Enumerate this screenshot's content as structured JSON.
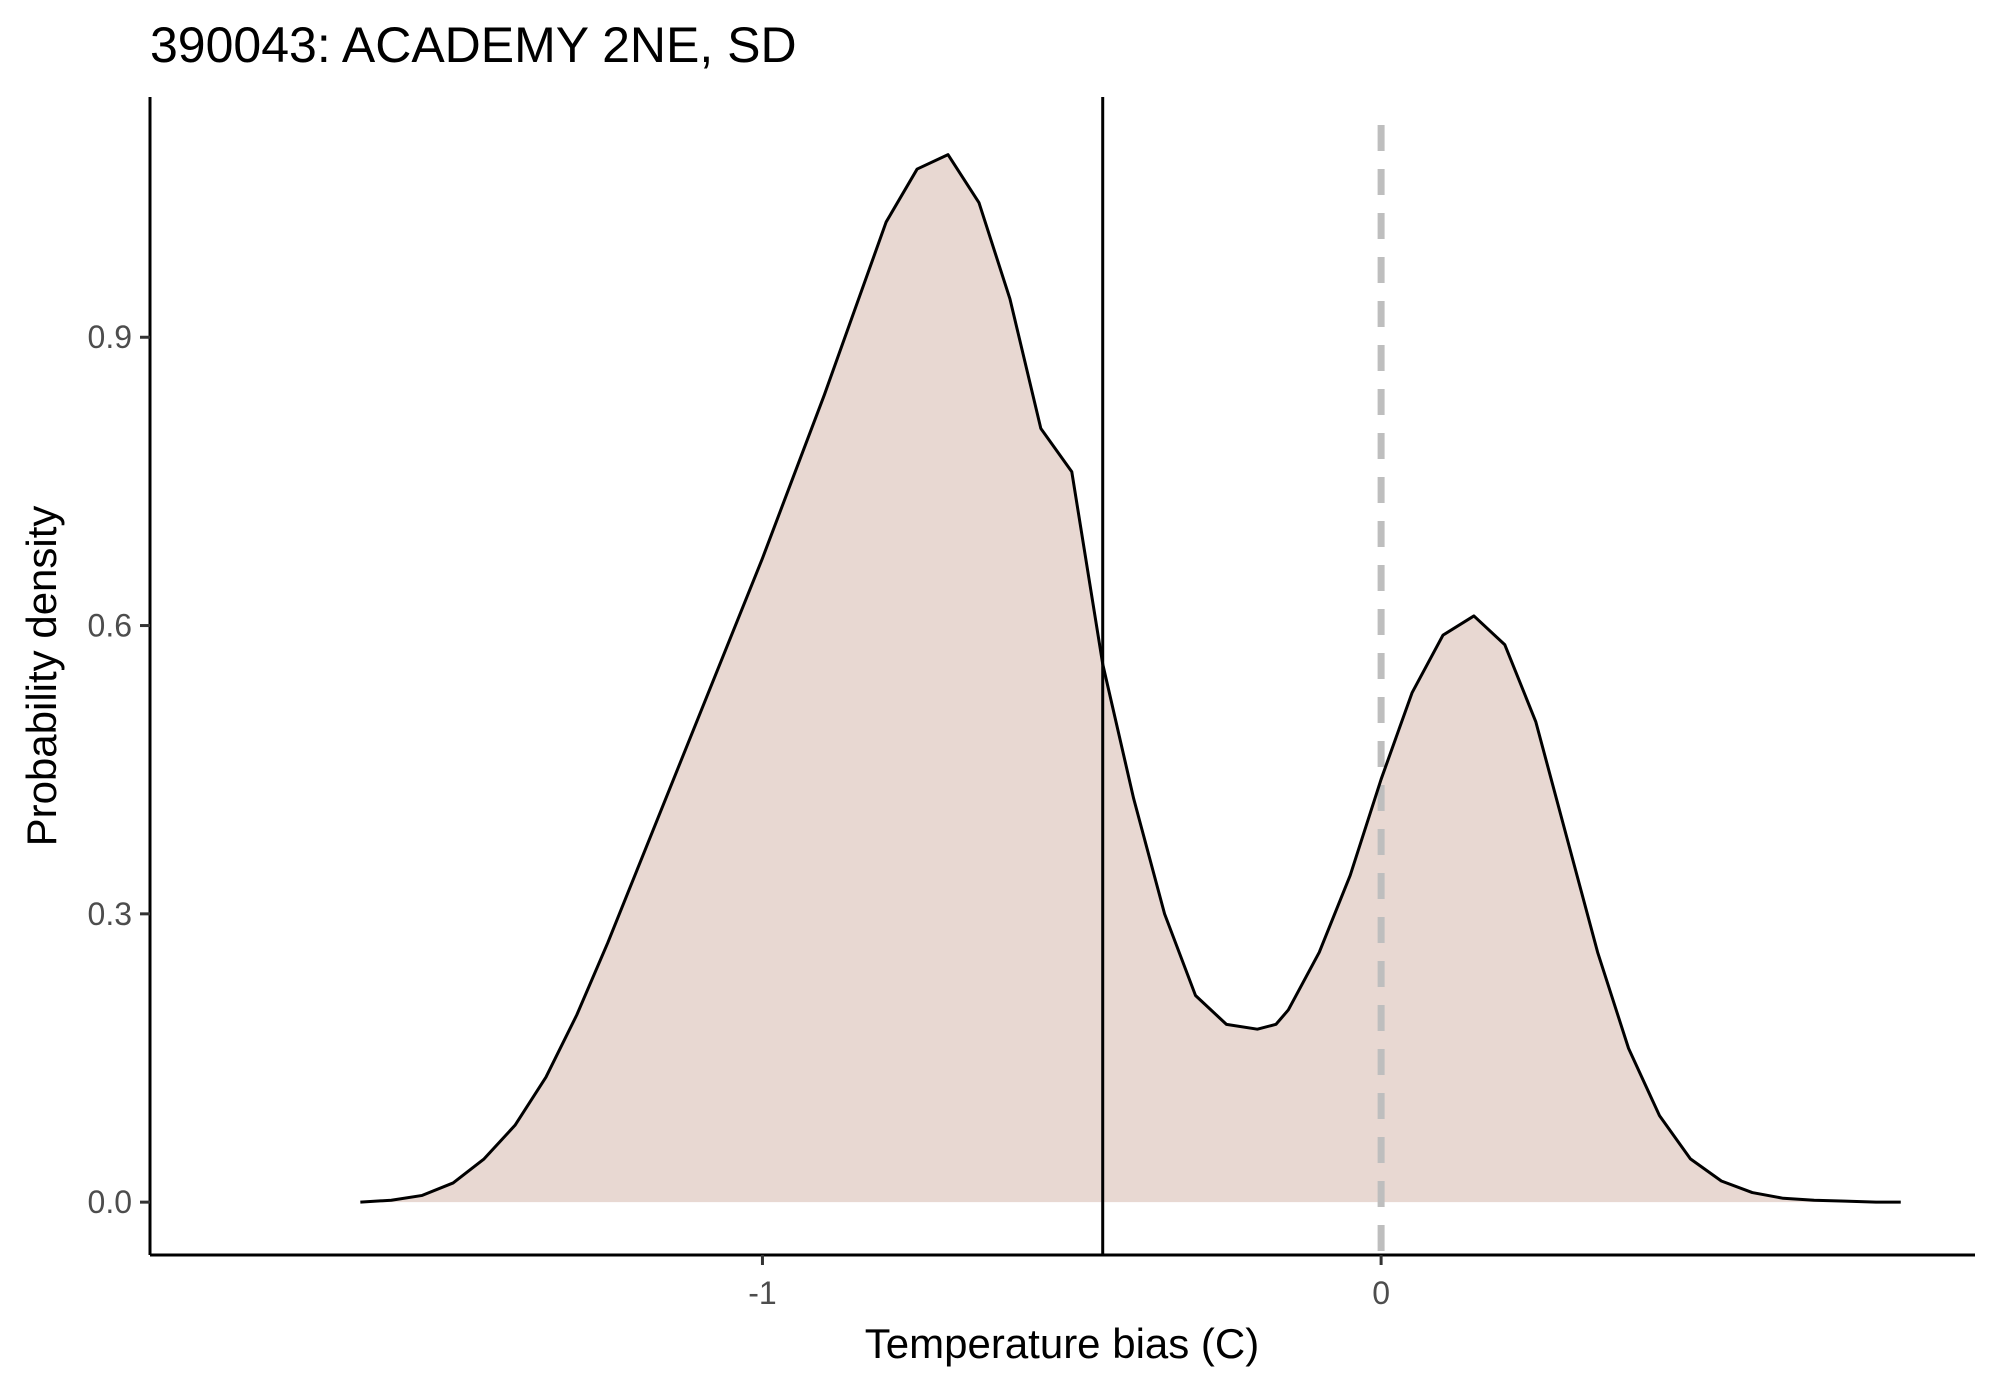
{
  "chart_data": {
    "type": "area",
    "title": "390043: ACADEMY 2NE, SD",
    "xlabel": "Temperature bias (C)",
    "ylabel": "Probability density",
    "xlim": [
      -1.99,
      0.96
    ],
    "ylim": [
      -0.055,
      1.15
    ],
    "x_ticks": [
      {
        "value": -1,
        "label": "-1"
      },
      {
        "value": 0,
        "label": "0"
      }
    ],
    "y_ticks": [
      {
        "value": 0.0,
        "label": "0.0"
      },
      {
        "value": 0.3,
        "label": "0.3"
      },
      {
        "value": 0.6,
        "label": "0.6"
      },
      {
        "value": 0.9,
        "label": "0.9"
      }
    ],
    "grid": false,
    "legend": "none",
    "fill_color": "#e8d8d2",
    "line_color": "#000000",
    "reference_lines": [
      {
        "x": -0.45,
        "style": "solid",
        "color": "#000000"
      },
      {
        "x": 0.0,
        "style": "dashed",
        "color": "#bebebe"
      }
    ],
    "x": [
      -1.65,
      -1.6,
      -1.55,
      -1.5,
      -1.45,
      -1.4,
      -1.35,
      -1.3,
      -1.25,
      -1.2,
      -1.15,
      -1.1,
      -1.05,
      -1.0,
      -0.95,
      -0.9,
      -0.85,
      -0.8,
      -0.75,
      -0.7,
      -0.65,
      -0.6,
      -0.55,
      -0.5,
      -0.45,
      -0.4,
      -0.35,
      -0.3,
      -0.25,
      -0.2,
      -0.17,
      -0.15,
      -0.1,
      -0.05,
      0.0,
      0.05,
      0.1,
      0.15,
      0.2,
      0.25,
      0.3,
      0.35,
      0.4,
      0.45,
      0.5,
      0.55,
      0.6,
      0.65,
      0.7,
      0.75,
      0.8,
      0.84
    ],
    "y": [
      0.0,
      0.002,
      0.007,
      0.02,
      0.045,
      0.08,
      0.13,
      0.195,
      0.27,
      0.35,
      0.43,
      0.51,
      0.59,
      0.67,
      0.755,
      0.84,
      0.93,
      1.02,
      1.075,
      1.09,
      1.04,
      0.94,
      0.805,
      0.76,
      0.56,
      0.42,
      0.3,
      0.215,
      0.185,
      0.18,
      0.185,
      0.2,
      0.26,
      0.34,
      0.44,
      0.53,
      0.59,
      0.61,
      0.58,
      0.5,
      0.38,
      0.26,
      0.16,
      0.09,
      0.045,
      0.022,
      0.01,
      0.004,
      0.002,
      0.001,
      0.0,
      0.0
    ]
  }
}
